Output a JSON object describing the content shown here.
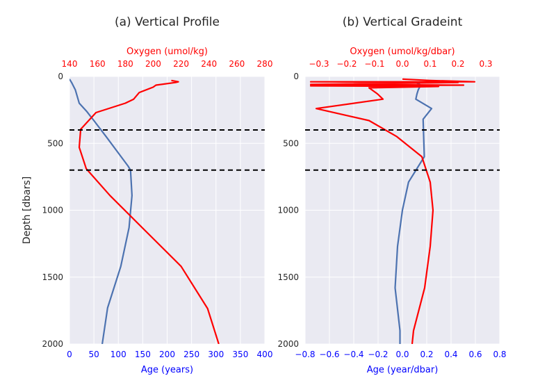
{
  "chart_data": [
    {
      "type": "line",
      "title": "(a) Vertical Profile",
      "ylabel": "Depth [dbars]",
      "ylim": [
        2000,
        0
      ],
      "yticks": [
        0,
        500,
        1000,
        1500,
        2000
      ],
      "x_bottom": {
        "label": "Age (years)",
        "lim": [
          0,
          400
        ],
        "ticks": [
          0,
          50,
          100,
          150,
          200,
          250,
          300,
          350,
          400
        ],
        "color": "#0000ff"
      },
      "x_top": {
        "label": "Oxygen (umol/kg)",
        "lim": [
          140,
          280
        ],
        "ticks": [
          140,
          160,
          180,
          200,
          220,
          240,
          260,
          280
        ],
        "color": "#ff0000"
      },
      "hlines": [
        400,
        700
      ],
      "grid": true,
      "series": [
        {
          "axis": "bottom",
          "color": "#4c72b0",
          "points": [
            [
              0,
              20
            ],
            [
              5,
              50
            ],
            [
              12,
              100
            ],
            [
              20,
              200
            ],
            [
              35,
              260
            ],
            [
              50,
              330
            ],
            [
              75,
              450
            ],
            [
              120,
              670
            ],
            [
              125,
              700
            ],
            [
              128,
              890
            ],
            [
              122,
              1130
            ],
            [
              105,
              1420
            ],
            [
              78,
              1730
            ],
            [
              67,
              2000
            ]
          ]
        },
        {
          "axis": "top",
          "color": "#ff0000",
          "points": [
            [
              213,
              30
            ],
            [
              218,
              40
            ],
            [
              216,
              45
            ],
            [
              202,
              65
            ],
            [
              200,
              80
            ],
            [
              190,
              120
            ],
            [
              186,
              170
            ],
            [
              180,
              200
            ],
            [
              159,
              270
            ],
            [
              148,
              395
            ],
            [
              147,
              530
            ],
            [
              152,
              690
            ],
            [
              169,
              890
            ],
            [
              194,
              1150
            ],
            [
              220,
              1420
            ],
            [
              239,
              1735
            ],
            [
              247,
              2000
            ]
          ]
        }
      ]
    },
    {
      "type": "line",
      "title": "(b) Vertical Gradeint",
      "ylabel": "",
      "ylim": [
        2000,
        0
      ],
      "yticks": [
        0,
        500,
        1000,
        1500,
        2000
      ],
      "x_bottom": {
        "label": "Age (year/dbar)",
        "lim": [
          -0.8,
          0.8
        ],
        "ticks": [
          -0.8,
          -0.6,
          -0.4,
          -0.2,
          0.0,
          0.2,
          0.4,
          0.6,
          0.8
        ],
        "color": "#0000ff"
      },
      "x_top": {
        "label": "Oxygen (umol/kg/dbar)",
        "lim": [
          -0.35,
          0.35
        ],
        "ticks": [
          -0.3,
          -0.2,
          -0.1,
          0.0,
          0.1,
          0.2,
          0.3
        ],
        "color": "#ff0000"
      },
      "hlines": [
        400,
        700
      ],
      "grid": true,
      "series": [
        {
          "axis": "bottom",
          "color": "#4c72b0",
          "points": [
            [
              0.15,
              40
            ],
            [
              0.12,
              50
            ],
            [
              0.15,
              65
            ],
            [
              0.13,
              100
            ],
            [
              0.12,
              130
            ],
            [
              0.11,
              170
            ],
            [
              0.24,
              240
            ],
            [
              0.17,
              320
            ],
            [
              0.18,
              600
            ],
            [
              0.05,
              790
            ],
            [
              0.0,
              1000
            ],
            [
              -0.04,
              1270
            ],
            [
              -0.06,
              1580
            ],
            [
              -0.02,
              1900
            ],
            [
              -0.02,
              2000
            ]
          ]
        },
        {
          "axis": "top",
          "color": "#ff0000",
          "points": [
            [
              0.0,
              20
            ],
            [
              0.1,
              30
            ],
            [
              0.26,
              40
            ],
            [
              -0.33,
              40
            ],
            [
              0.2,
              45
            ],
            [
              -0.33,
              60
            ],
            [
              0.22,
              65
            ],
            [
              -0.33,
              70
            ],
            [
              0.13,
              75
            ],
            [
              -0.12,
              85
            ],
            [
              -0.09,
              130
            ],
            [
              -0.07,
              170
            ],
            [
              -0.31,
              240
            ],
            [
              -0.12,
              330
            ],
            [
              -0.02,
              450
            ],
            [
              0.07,
              600
            ],
            [
              0.1,
              790
            ],
            [
              0.11,
              1000
            ],
            [
              0.1,
              1270
            ],
            [
              0.08,
              1580
            ],
            [
              0.04,
              1900
            ],
            [
              0.035,
              2000
            ]
          ]
        }
      ]
    }
  ]
}
